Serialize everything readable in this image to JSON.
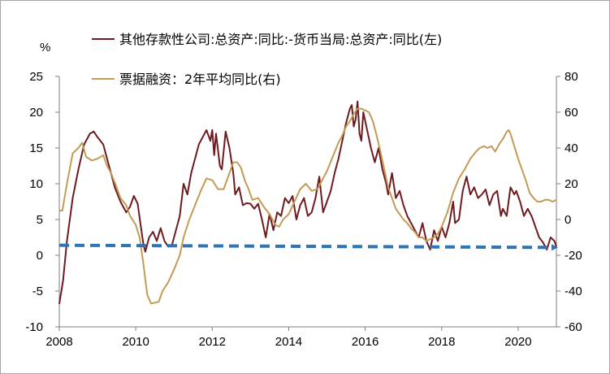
{
  "chart_data": {
    "type": "line",
    "title": "",
    "y_left_unit": "%",
    "y_left_range": [
      -10,
      25
    ],
    "y_left_ticks": [
      "25",
      "20",
      "15",
      "10",
      "5",
      "0",
      "-5",
      "-10"
    ],
    "y_right_range": [
      -60,
      80
    ],
    "y_right_ticks": [
      "80",
      "60",
      "40",
      "20",
      "0",
      "-20",
      "-40",
      "-60"
    ],
    "x_range": [
      2008,
      2021
    ],
    "x_ticks": [
      "2008",
      "2010",
      "2012",
      "2014",
      "2016",
      "2018",
      "2020"
    ],
    "grid": false,
    "legend_position": "top",
    "series": [
      {
        "name": "其他存款性公司:总资产:同比:-货币当局:总资产:同比(左)",
        "axis": "left",
        "color": "#6e1a1f",
        "points": [
          [
            2008.0,
            -6.8
          ],
          [
            2008.1,
            -3.5
          ],
          [
            2008.2,
            2.0
          ],
          [
            2008.35,
            8.0
          ],
          [
            2008.5,
            12.0
          ],
          [
            2008.65,
            15.5
          ],
          [
            2008.8,
            17.0
          ],
          [
            2008.9,
            17.3
          ],
          [
            2009.0,
            16.5
          ],
          [
            2009.15,
            15.5
          ],
          [
            2009.3,
            12.5
          ],
          [
            2009.45,
            9.5
          ],
          [
            2009.6,
            7.5
          ],
          [
            2009.75,
            6.0
          ],
          [
            2009.85,
            6.8
          ],
          [
            2009.95,
            8.3
          ],
          [
            2010.05,
            7.2
          ],
          [
            2010.12,
            4.5
          ],
          [
            2010.2,
            1.5
          ],
          [
            2010.25,
            0.5
          ],
          [
            2010.35,
            2.5
          ],
          [
            2010.45,
            3.3
          ],
          [
            2010.55,
            2.0
          ],
          [
            2010.65,
            3.8
          ],
          [
            2010.75,
            2.0
          ],
          [
            2010.85,
            1.2
          ],
          [
            2010.95,
            1.5
          ],
          [
            2011.05,
            3.5
          ],
          [
            2011.15,
            5.5
          ],
          [
            2011.25,
            10.0
          ],
          [
            2011.35,
            8.5
          ],
          [
            2011.45,
            11.5
          ],
          [
            2011.55,
            13.5
          ],
          [
            2011.65,
            15.5
          ],
          [
            2011.75,
            16.5
          ],
          [
            2011.85,
            17.5
          ],
          [
            2011.95,
            16.0
          ],
          [
            2012.0,
            17.5
          ],
          [
            2012.05,
            14.0
          ],
          [
            2012.1,
            17.0
          ],
          [
            2012.2,
            12.5
          ],
          [
            2012.25,
            12.0
          ],
          [
            2012.35,
            17.3
          ],
          [
            2012.45,
            15.0
          ],
          [
            2012.55,
            11.5
          ],
          [
            2012.6,
            8.5
          ],
          [
            2012.7,
            9.5
          ],
          [
            2012.8,
            7.0
          ],
          [
            2012.9,
            7.3
          ],
          [
            2013.0,
            7.2
          ],
          [
            2013.1,
            6.5
          ],
          [
            2013.2,
            7.2
          ],
          [
            2013.3,
            5.0
          ],
          [
            2013.4,
            2.5
          ],
          [
            2013.5,
            5.8
          ],
          [
            2013.6,
            3.5
          ],
          [
            2013.7,
            6.0
          ],
          [
            2013.8,
            5.5
          ],
          [
            2013.9,
            8.0
          ],
          [
            2014.0,
            7.3
          ],
          [
            2014.1,
            8.3
          ],
          [
            2014.2,
            5.0
          ],
          [
            2014.3,
            7.0
          ],
          [
            2014.4,
            8.0
          ],
          [
            2014.5,
            5.5
          ],
          [
            2014.6,
            6.0
          ],
          [
            2014.7,
            8.0
          ],
          [
            2014.8,
            11.0
          ],
          [
            2014.9,
            6.0
          ],
          [
            2015.0,
            7.5
          ],
          [
            2015.1,
            9.0
          ],
          [
            2015.2,
            11.5
          ],
          [
            2015.3,
            13.5
          ],
          [
            2015.4,
            16.0
          ],
          [
            2015.5,
            18.5
          ],
          [
            2015.6,
            20.5
          ],
          [
            2015.65,
            21.0
          ],
          [
            2015.7,
            18.0
          ],
          [
            2015.75,
            19.0
          ],
          [
            2015.8,
            21.5
          ],
          [
            2015.85,
            17.0
          ],
          [
            2015.9,
            16.0
          ],
          [
            2015.95,
            20.0
          ],
          [
            2016.05,
            17.5
          ],
          [
            2016.15,
            15.0
          ],
          [
            2016.25,
            13.0
          ],
          [
            2016.35,
            15.0
          ],
          [
            2016.45,
            12.0
          ],
          [
            2016.55,
            10.0
          ],
          [
            2016.6,
            8.5
          ],
          [
            2016.7,
            11.5
          ],
          [
            2016.8,
            8.0
          ],
          [
            2016.9,
            9.0
          ],
          [
            2017.0,
            7.0
          ],
          [
            2017.1,
            5.5
          ],
          [
            2017.2,
            4.5
          ],
          [
            2017.3,
            3.5
          ],
          [
            2017.4,
            2.5
          ],
          [
            2017.5,
            4.5
          ],
          [
            2017.6,
            2.0
          ],
          [
            2017.7,
            0.8
          ],
          [
            2017.8,
            3.5
          ],
          [
            2017.9,
            2.0
          ],
          [
            2018.0,
            4.0
          ],
          [
            2018.1,
            2.5
          ],
          [
            2018.2,
            4.5
          ],
          [
            2018.3,
            7.5
          ],
          [
            2018.35,
            4.5
          ],
          [
            2018.45,
            5.0
          ],
          [
            2018.55,
            9.0
          ],
          [
            2018.65,
            11.0
          ],
          [
            2018.75,
            8.5
          ],
          [
            2018.85,
            9.5
          ],
          [
            2018.95,
            8.0
          ],
          [
            2019.05,
            8.5
          ],
          [
            2019.15,
            9.2
          ],
          [
            2019.25,
            7.0
          ],
          [
            2019.35,
            8.5
          ],
          [
            2019.45,
            9.0
          ],
          [
            2019.55,
            5.5
          ],
          [
            2019.6,
            6.5
          ],
          [
            2019.7,
            5.5
          ],
          [
            2019.8,
            9.5
          ],
          [
            2019.9,
            8.5
          ],
          [
            2019.95,
            9.0
          ],
          [
            2020.05,
            7.5
          ],
          [
            2020.15,
            5.5
          ],
          [
            2020.25,
            6.5
          ],
          [
            2020.35,
            5.5
          ],
          [
            2020.45,
            4.0
          ],
          [
            2020.55,
            2.5
          ],
          [
            2020.65,
            1.8
          ],
          [
            2020.75,
            0.8
          ],
          [
            2020.85,
            2.5
          ],
          [
            2020.95,
            2.0
          ],
          [
            2021.0,
            1.2
          ]
        ]
      },
      {
        "name": "票据融资：2年平均同比(右)",
        "axis": "right",
        "color": "#c39a56",
        "points": [
          [
            2008.0,
            5.0
          ],
          [
            2008.08,
            5.0
          ],
          [
            2008.2,
            20.0
          ],
          [
            2008.35,
            37.0
          ],
          [
            2008.5,
            40.0
          ],
          [
            2008.6,
            43.0
          ],
          [
            2008.7,
            35.0
          ],
          [
            2008.85,
            33.0
          ],
          [
            2009.0,
            34.0
          ],
          [
            2009.15,
            36.0
          ],
          [
            2009.25,
            30.0
          ],
          [
            2009.35,
            26.0
          ],
          [
            2009.5,
            18.0
          ],
          [
            2009.6,
            12.0
          ],
          [
            2009.75,
            8.0
          ],
          [
            2009.85,
            2.0
          ],
          [
            2010.0,
            -3.0
          ],
          [
            2010.1,
            -10.0
          ],
          [
            2010.2,
            -25.0
          ],
          [
            2010.3,
            -42.0
          ],
          [
            2010.4,
            -47.0
          ],
          [
            2010.6,
            -46.0
          ],
          [
            2010.7,
            -40.0
          ],
          [
            2010.85,
            -35.0
          ],
          [
            2011.0,
            -28.0
          ],
          [
            2011.15,
            -20.0
          ],
          [
            2011.25,
            -10.0
          ],
          [
            2011.4,
            0.0
          ],
          [
            2011.55,
            8.0
          ],
          [
            2011.7,
            16.0
          ],
          [
            2011.85,
            23.0
          ],
          [
            2012.0,
            22.0
          ],
          [
            2012.15,
            17.0
          ],
          [
            2012.3,
            17.0
          ],
          [
            2012.45,
            26.0
          ],
          [
            2012.55,
            32.0
          ],
          [
            2012.65,
            32.0
          ],
          [
            2012.75,
            29.0
          ],
          [
            2012.85,
            22.0
          ],
          [
            2012.95,
            17.0
          ],
          [
            2013.05,
            11.0
          ],
          [
            2013.2,
            12.0
          ],
          [
            2013.35,
            7.0
          ],
          [
            2013.5,
            3.0
          ],
          [
            2013.65,
            -3.0
          ],
          [
            2013.75,
            -4.0
          ],
          [
            2013.85,
            0.0
          ],
          [
            2014.0,
            3.0
          ],
          [
            2014.15,
            10.0
          ],
          [
            2014.3,
            17.0
          ],
          [
            2014.45,
            20.0
          ],
          [
            2014.6,
            16.0
          ],
          [
            2014.75,
            17.0
          ],
          [
            2014.9,
            23.0
          ],
          [
            2015.0,
            27.0
          ],
          [
            2015.15,
            35.0
          ],
          [
            2015.3,
            43.0
          ],
          [
            2015.4,
            47.0
          ],
          [
            2015.5,
            52.0
          ],
          [
            2015.6,
            55.0
          ],
          [
            2015.7,
            59.0
          ],
          [
            2015.8,
            62.0
          ],
          [
            2015.9,
            62.0
          ],
          [
            2016.0,
            61.0
          ],
          [
            2016.1,
            60.0
          ],
          [
            2016.2,
            55.0
          ],
          [
            2016.3,
            47.0
          ],
          [
            2016.4,
            38.0
          ],
          [
            2016.5,
            28.0
          ],
          [
            2016.6,
            18.0
          ],
          [
            2016.7,
            12.0
          ],
          [
            2016.8,
            6.0
          ],
          [
            2016.9,
            3.0
          ],
          [
            2017.0,
            0.0
          ],
          [
            2017.1,
            -2.0
          ],
          [
            2017.2,
            -5.0
          ],
          [
            2017.3,
            -7.0
          ],
          [
            2017.4,
            -10.0
          ],
          [
            2017.5,
            -10.0
          ],
          [
            2017.6,
            -12.0
          ],
          [
            2017.7,
            -11.0
          ],
          [
            2017.8,
            -10.0
          ],
          [
            2017.9,
            -8.0
          ],
          [
            2018.0,
            -4.0
          ],
          [
            2018.15,
            4.0
          ],
          [
            2018.3,
            15.0
          ],
          [
            2018.45,
            23.0
          ],
          [
            2018.6,
            28.0
          ],
          [
            2018.75,
            34.0
          ],
          [
            2018.9,
            38.0
          ],
          [
            2019.0,
            40.0
          ],
          [
            2019.1,
            41.0
          ],
          [
            2019.2,
            40.0
          ],
          [
            2019.3,
            41.0
          ],
          [
            2019.4,
            38.0
          ],
          [
            2019.5,
            42.0
          ],
          [
            2019.6,
            45.0
          ],
          [
            2019.7,
            49.0
          ],
          [
            2019.75,
            50.0
          ],
          [
            2019.8,
            48.0
          ],
          [
            2019.9,
            41.0
          ],
          [
            2020.0,
            34.0
          ],
          [
            2020.1,
            28.0
          ],
          [
            2020.2,
            22.0
          ],
          [
            2020.3,
            15.0
          ],
          [
            2020.4,
            12.0
          ],
          [
            2020.5,
            10.0
          ],
          [
            2020.6,
            10.0
          ],
          [
            2020.7,
            11.0
          ],
          [
            2020.8,
            11.0
          ],
          [
            2020.9,
            10.0
          ],
          [
            2021.0,
            11.0
          ]
        ]
      }
    ],
    "annotations": [
      {
        "type": "dashed-arrow",
        "axis": "left",
        "color": "#2e75b6",
        "points": [
          [
            2008.0,
            1.4
          ],
          [
            2021.0,
            1.1
          ]
        ]
      }
    ]
  }
}
